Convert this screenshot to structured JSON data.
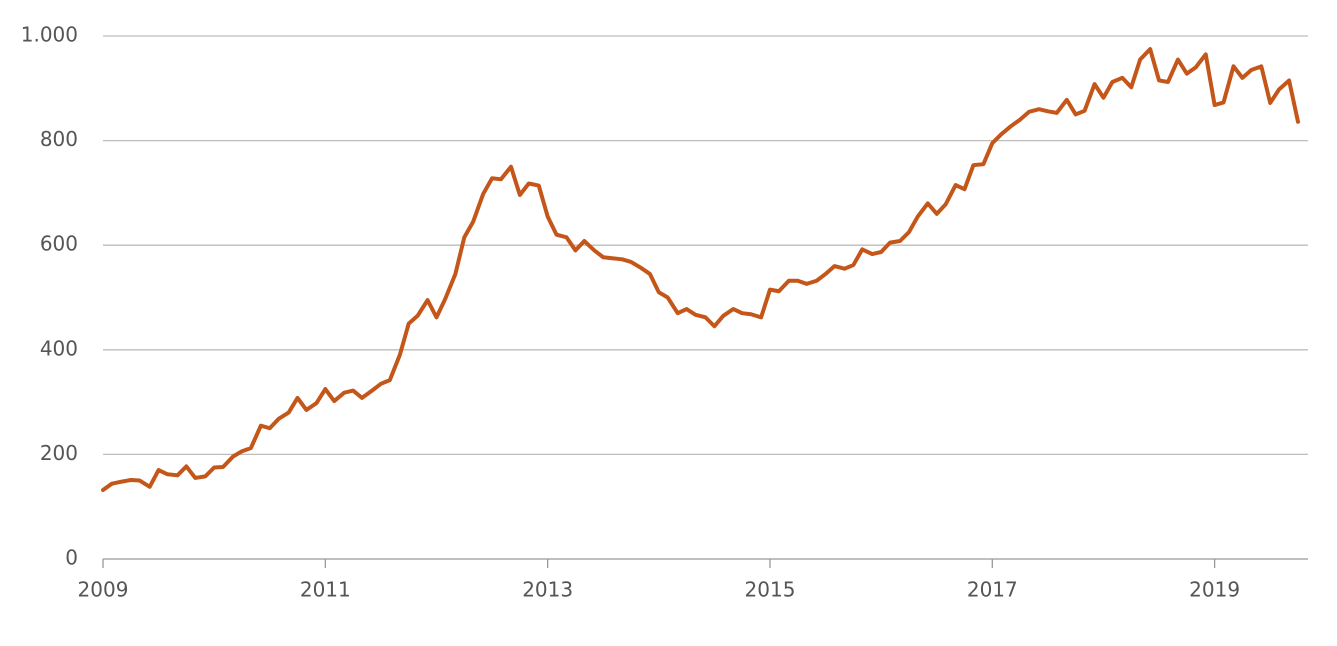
{
  "chart_data": {
    "type": "line",
    "x": [
      2009,
      2009.08,
      2009.17,
      2009.25,
      2009.33,
      2009.42,
      2009.5,
      2009.58,
      2009.67,
      2009.75,
      2009.83,
      2009.92,
      2010,
      2010.08,
      2010.17,
      2010.25,
      2010.33,
      2010.42,
      2010.5,
      2010.58,
      2010.67,
      2010.75,
      2010.83,
      2010.92,
      2011,
      2011.08,
      2011.17,
      2011.25,
      2011.33,
      2011.42,
      2011.5,
      2011.58,
      2011.67,
      2011.75,
      2011.83,
      2011.92,
      2012,
      2012.08,
      2012.17,
      2012.25,
      2012.33,
      2012.42,
      2012.5,
      2012.58,
      2012.67,
      2012.75,
      2012.83,
      2012.92,
      2013,
      2013.08,
      2013.17,
      2013.25,
      2013.33,
      2013.42,
      2013.5,
      2013.58,
      2013.67,
      2013.75,
      2013.83,
      2013.92,
      2014,
      2014.08,
      2014.17,
      2014.25,
      2014.33,
      2014.42,
      2014.5,
      2014.58,
      2014.67,
      2014.75,
      2014.83,
      2014.92,
      2015,
      2015.08,
      2015.17,
      2015.25,
      2015.33,
      2015.42,
      2015.5,
      2015.58,
      2015.67,
      2015.75,
      2015.83,
      2015.92,
      2016,
      2016.08,
      2016.17,
      2016.25,
      2016.33,
      2016.42,
      2016.5,
      2016.58,
      2016.67,
      2016.75,
      2016.83,
      2016.92,
      2017,
      2017.08,
      2017.17,
      2017.25,
      2017.33,
      2017.42,
      2017.5,
      2017.58,
      2017.67,
      2017.75,
      2017.83,
      2017.92,
      2018,
      2018.08,
      2018.17,
      2018.25,
      2018.33,
      2018.42,
      2018.5,
      2018.58,
      2018.67,
      2018.75,
      2018.83,
      2018.92,
      2019,
      2019.08,
      2019.17,
      2019.25,
      2019.33,
      2019.42,
      2019.5,
      2019.58,
      2019.67,
      2019.75
    ],
    "values": [
      132,
      144,
      148,
      151,
      150,
      138,
      170,
      162,
      160,
      177,
      155,
      158,
      175,
      176,
      196,
      206,
      212,
      255,
      250,
      268,
      280,
      308,
      285,
      298,
      325,
      302,
      318,
      322,
      308,
      322,
      335,
      342,
      390,
      450,
      465,
      495,
      462,
      498,
      545,
      615,
      645,
      698,
      728,
      726,
      750,
      696,
      718,
      714,
      655,
      620,
      615,
      590,
      608,
      590,
      577,
      575,
      573,
      568,
      558,
      545,
      510,
      500,
      470,
      478,
      467,
      462,
      445,
      465,
      478,
      470,
      468,
      462,
      515,
      512,
      532,
      532,
      526,
      532,
      545,
      560,
      555,
      562,
      592,
      583,
      587,
      605,
      608,
      625,
      655,
      680,
      660,
      678,
      715,
      707,
      753,
      755,
      795,
      812,
      828,
      840,
      855,
      860,
      856,
      853,
      878,
      850,
      857,
      908,
      882,
      912,
      920,
      902,
      955,
      975,
      915,
      912,
      955,
      928,
      940,
      965,
      868,
      873,
      942,
      920,
      935,
      942,
      872,
      898,
      915,
      836
    ],
    "color": "#c4561a",
    "xlim": [
      2009,
      2019.84
    ],
    "xticks": [
      2009,
      2011,
      2013,
      2015,
      2017,
      2019
    ],
    "ylim": [
      0,
      1000
    ],
    "yticks": [
      0,
      200,
      400,
      600,
      800,
      {
        "value": 1000,
        "label": "1.000"
      }
    ],
    "grid": true
  }
}
